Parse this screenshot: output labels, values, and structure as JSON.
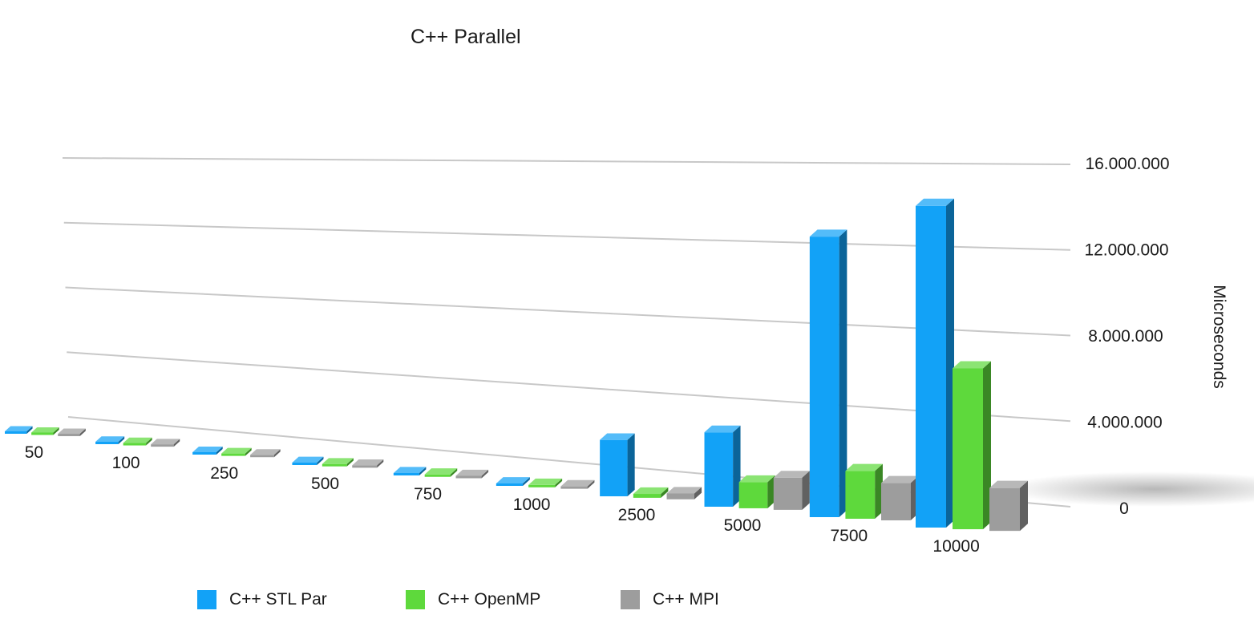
{
  "chart_data": {
    "type": "bar",
    "title": "C++ Parallel",
    "xlabel": "",
    "ylabel": "Microseconds",
    "categories": [
      "50",
      "100",
      "250",
      "500",
      "750",
      "1000",
      "2500",
      "5000",
      "7500",
      "10000"
    ],
    "series": [
      {
        "name": "C++ STL Par",
        "color": "#12a2f7",
        "values": [
          20000,
          30000,
          40000,
          60000,
          90000,
          120000,
          2900000,
          3700000,
          13500000,
          15000000
        ]
      },
      {
        "name": "C++ OpenMP",
        "color": "#5ed93c",
        "values": [
          5000,
          10000,
          15000,
          20000,
          30000,
          40000,
          200000,
          1300000,
          2300000,
          7500000
        ]
      },
      {
        "name": "C++ MPI",
        "color": "#9d9d9d",
        "values": [
          5000,
          10000,
          15000,
          20000,
          30000,
          40000,
          300000,
          1600000,
          1800000,
          2000000
        ]
      }
    ],
    "ylim": [
      0,
      16000000
    ],
    "yticks": [
      "0",
      "4.000.000",
      "8.000.000",
      "12.000.000",
      "16.000.000"
    ],
    "ytick_values": [
      0,
      4000000,
      8000000,
      12000000,
      16000000
    ],
    "grid": true,
    "legend": "bottom"
  }
}
